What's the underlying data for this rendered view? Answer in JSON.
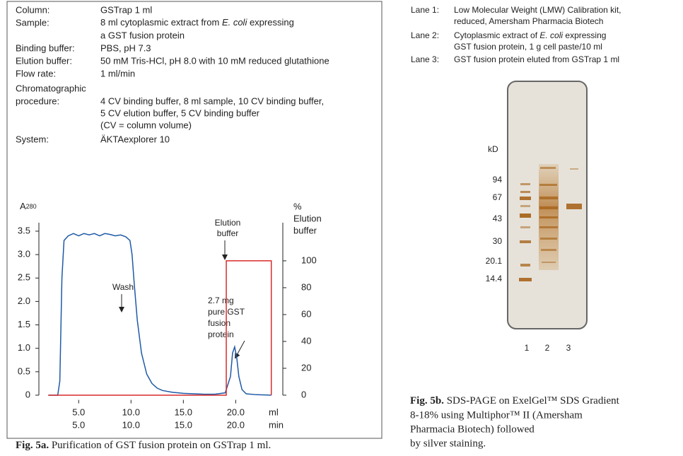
{
  "parameters": [
    {
      "label": "Column:",
      "value": [
        "GSTrap 1 ml"
      ]
    },
    {
      "label": "Sample:",
      "value": [
        "8 ml cytoplasmic extract from ",
        "E. coli",
        " expressing",
        "a GST fusion protein"
      ]
    },
    {
      "label": "Binding buffer:",
      "value": [
        "PBS, pH 7.3"
      ]
    },
    {
      "label": "Elution buffer:",
      "value": [
        "50 mM Tris-HCl, pH 8.0 with 10 mM reduced glutathione"
      ]
    },
    {
      "label": "Flow rate:",
      "value": [
        "1 ml/min"
      ]
    },
    {
      "label": [
        "Chromatographic",
        "procedure:"
      ],
      "value": [
        "4 CV binding buffer, 8 ml sample, 10 CV binding buffer,",
        "5 CV elution buffer, 5 CV binding buffer",
        "(CV = column volume)"
      ]
    },
    {
      "label": "System:",
      "value": [
        "ÄKTAexplorer 10"
      ]
    }
  ],
  "chart_data": {
    "type": "line",
    "y_label": "A",
    "y_label_sub": "280",
    "y2_label": [
      "%",
      "Elution",
      "buffer"
    ],
    "x_label": "ml",
    "x2_label": "min",
    "xlim": [
      1.2,
      24.5
    ],
    "xticks": [
      {
        "value": 5,
        "label": "5.0"
      },
      {
        "value": 10,
        "label": "10.0"
      },
      {
        "value": 15,
        "label": "15.0"
      },
      {
        "value": 20,
        "label": "20.0"
      }
    ],
    "x2ticks": [
      {
        "value": 5,
        "label": "5.0"
      },
      {
        "value": 10,
        "label": "10.0"
      },
      {
        "value": 15,
        "label": "15.0"
      },
      {
        "value": 20,
        "label": "20.0"
      }
    ],
    "ylim": [
      -0.1,
      3.75
    ],
    "yticks": [
      0,
      0.5,
      {
        "value": 1,
        "label": "1.0"
      },
      1.5,
      {
        "value": 2,
        "label": "2.0"
      },
      2.5,
      {
        "value": 3,
        "label": "3.0"
      },
      3.5
    ],
    "y2lim": [
      -3.5,
      130.8
    ],
    "y2ticks": [
      0,
      20,
      40,
      60,
      80,
      100
    ],
    "series": [
      {
        "color": "#1f5aa6",
        "x": [
          2.1,
          3.0,
          3.2,
          3.4,
          3.6,
          3.8,
          4.0,
          4.5,
          5.0,
          5.5,
          6.0,
          6.5,
          7.0,
          7.5,
          8.0,
          8.5,
          9.0,
          9.5,
          9.9,
          10.1,
          10.3,
          10.6,
          11.0,
          11.5,
          12.0,
          12.5,
          13.0,
          14.0,
          15.0,
          16.0,
          17.0,
          18.0,
          19.0,
          19.5,
          19.7,
          19.9,
          20.1,
          20.3,
          20.6,
          21.0,
          22.0,
          23.4
        ],
        "values": [
          0,
          0,
          0.3,
          2.5,
          3.3,
          3.35,
          3.4,
          3.45,
          3.4,
          3.45,
          3.42,
          3.45,
          3.4,
          3.45,
          3.43,
          3.4,
          3.42,
          3.38,
          3.3,
          3.0,
          2.4,
          1.6,
          0.9,
          0.45,
          0.25,
          0.15,
          0.1,
          0.06,
          0.04,
          0.03,
          0.02,
          0.02,
          0.05,
          0.4,
          0.9,
          1.03,
          0.8,
          0.4,
          0.12,
          0.03,
          0.01,
          0
        ]
      },
      {
        "color": "#d92b2b",
        "axis": "y2",
        "x": [
          2.1,
          19.1,
          19.1,
          23.4,
          23.4
        ],
        "values": [
          0,
          0,
          100,
          100,
          0
        ]
      }
    ],
    "annotations": [
      [
        "Elution",
        "buffer"
      ],
      [
        "Wash"
      ],
      [
        "2.7 mg",
        "pure GST",
        "fusion",
        "protein"
      ]
    ]
  },
  "lanes": [
    {
      "label": "Lane 1:",
      "text": [
        "Low Molecular Weight (LMW) Calibration kit,",
        "reduced, Amersham Pharmacia Biotech"
      ]
    },
    {
      "label": "Lane 2:",
      "text": [
        "Cytoplasmic extract of ",
        "E. coli",
        " expressing",
        "GST fusion protein, 1 g cell paste/10 ml"
      ]
    },
    {
      "label": "Lane 3:",
      "text": [
        "GST fusion protein eluted from GSTrap 1 ml"
      ]
    }
  ],
  "gel": {
    "unit": "kD",
    "markers": [
      "94",
      "67",
      "43",
      "30",
      "20.1",
      "14.4"
    ],
    "lane_numbers": [
      "1",
      "2",
      "3"
    ]
  },
  "captions": [
    {
      "label": "Fig. 5a.",
      "text": [
        " Purification of GST fusion protein on GSTrap 1 ml."
      ]
    },
    {
      "label": "Fig. 5b.",
      "text": [
        " SDS-PAGE on ExelGel™ SDS Gradient",
        "8-18% using Multiphor™ II (Amersham",
        "Pharmacia Biotech) followed",
        "by silver staining."
      ]
    }
  ]
}
